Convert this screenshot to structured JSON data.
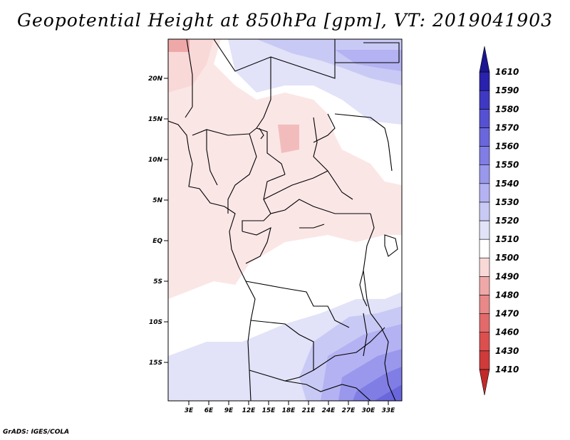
{
  "title": "Geopotential Height at 850hPa [gpm], VT: 2019041903",
  "credit": "GrADS: IGES/COLA",
  "map": {
    "lat_labels": [
      "20N",
      "15N",
      "10N",
      "5N",
      "EQ",
      "5S",
      "10S",
      "15S"
    ],
    "lon_labels": [
      "3E",
      "6E",
      "9E",
      "12E",
      "15E",
      "18E",
      "21E",
      "24E",
      "27E",
      "30E",
      "33E"
    ]
  },
  "colorbar": {
    "levels": [
      "1410",
      "1430",
      "1460",
      "1470",
      "1480",
      "1490",
      "1500",
      "1510",
      "1520",
      "1530",
      "1540",
      "1550",
      "1560",
      "1570",
      "1580",
      "1590",
      "1610"
    ],
    "colors": [
      "#c22a2a",
      "#cf3a3a",
      "#dc4f4f",
      "#e26a6a",
      "#e88888",
      "#efa8a8",
      "#f9d8d8",
      "#ffffff",
      "#e2e2f8",
      "#c9c9f5",
      "#b4b2f2",
      "#9a98ec",
      "#807de4",
      "#6a66dc",
      "#5651d2",
      "#3e38c2",
      "#2a22ac",
      "#1c1590"
    ]
  }
}
